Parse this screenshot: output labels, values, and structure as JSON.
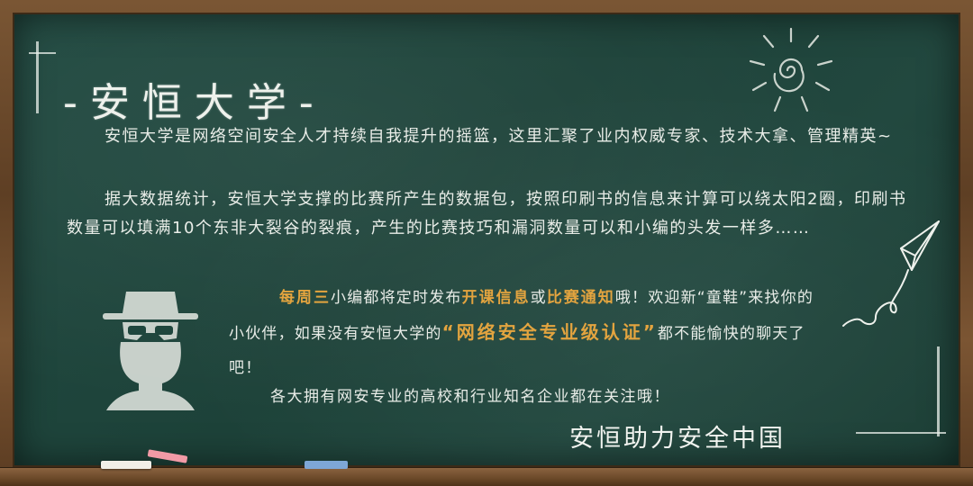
{
  "title": "-安恒大学-",
  "intro": {
    "p1": "安恒大学是网络空间安全人才持续自我提升的摇篮，这里汇聚了业内权威专家、技术大拿、管理精英~",
    "p2": "据大数据统计，安恒大学支撑的比赛所产生的数据包，按照印刷书的信息来计算可以绕太阳2圈，印刷书数量可以填满10个东非大裂谷的裂痕，产生的比赛技巧和漏洞数量可以和小编的头发一样多……"
  },
  "notice": {
    "part1": "每周三",
    "part2": "小编都将定时发布",
    "part3": "开课信息",
    "part4": "或",
    "part5": "比赛通知",
    "part6": "哦！欢迎新“童鞋”来找你的小伙伴，如果没有安恒大学的",
    "part7": "“网络安全专业级认证”",
    "part8": "都不能愉快的聊天了吧！"
  },
  "last_line": "各大拥有网安专业的高校和行业知名企业都在关注哦！",
  "slogan": "安恒助力安全中国",
  "colors": {
    "board": "#1f463d",
    "frame": "#6b4a2e",
    "chalk_text": "#e9ede8",
    "highlight": "#e3a43f"
  }
}
